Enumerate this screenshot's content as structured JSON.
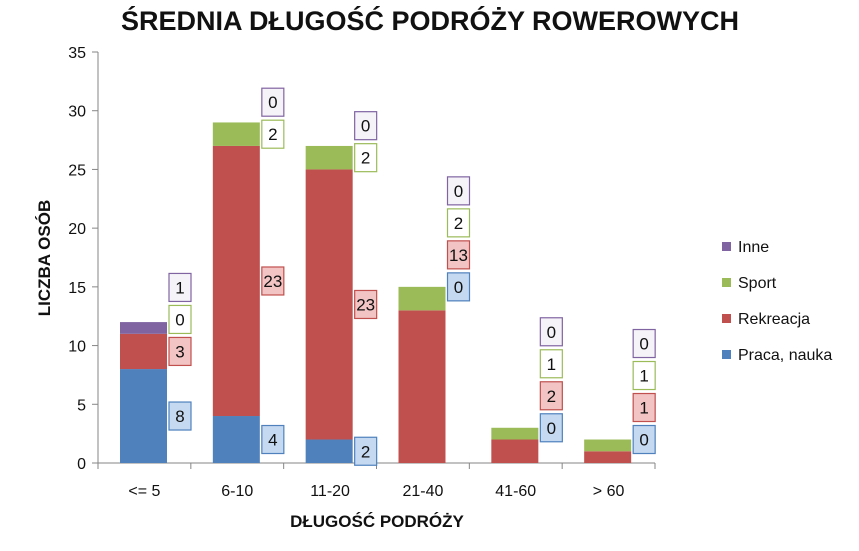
{
  "chart_data": {
    "type": "bar",
    "stacked": true,
    "title": "ŚREDNIA DŁUGOŚĆ PODRÓŻY ROWEROWYCH",
    "xlabel": "DŁUGOŚĆ PODRÓŻY",
    "ylabel": "LICZBA OSÓB",
    "ylim": [
      0,
      35
    ],
    "yticks": [
      0,
      5,
      10,
      15,
      20,
      25,
      30,
      35
    ],
    "categories": [
      "<= 5",
      "6-10",
      "11-20",
      "21-40",
      "41-60",
      "> 60"
    ],
    "series": [
      {
        "name": "Praca, nauka",
        "color": "#4f81bd",
        "label_bg": "#c5d9f1",
        "values": [
          8,
          4,
          2,
          0,
          0,
          0
        ]
      },
      {
        "name": "Rekreacja",
        "color": "#c0504d",
        "label_bg": "#f2c4c4",
        "values": [
          3,
          23,
          23,
          13,
          2,
          1
        ]
      },
      {
        "name": "Sport",
        "color": "#9bbb59",
        "label_bg": "#ffffff",
        "values": [
          0,
          2,
          2,
          2,
          1,
          1
        ]
      },
      {
        "name": "Inne",
        "color": "#8064a2",
        "label_bg": "#f5f3f8",
        "values": [
          1,
          0,
          0,
          0,
          0,
          0
        ]
      }
    ],
    "legend_position": "right",
    "grid": false
  }
}
